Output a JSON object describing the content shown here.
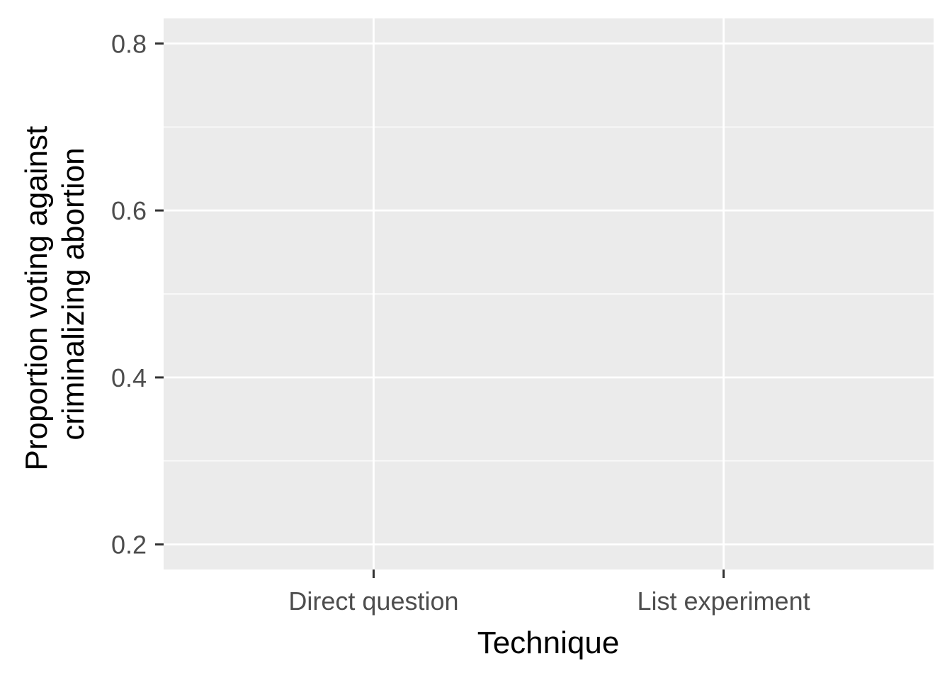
{
  "chart_data": {
    "type": "scatter",
    "title": "",
    "xlabel": "Technique",
    "ylabel_lines": [
      "Proportion voting against",
      "criminalizing abortion"
    ],
    "categories": [
      "Direct question",
      "List experiment"
    ],
    "ylim": [
      0.17,
      0.83
    ],
    "y_major_ticks": [
      0.2,
      0.4,
      0.6,
      0.8
    ],
    "y_tick_labels": [
      "0.2",
      "0.4",
      "0.6",
      "0.8"
    ],
    "y_minor_ticks": [
      0.3,
      0.5,
      0.7
    ],
    "series": [],
    "grid": true,
    "legend": "none",
    "panel_color": "#ebebeb",
    "grid_color": "#ffffff",
    "tick_color": "#333333",
    "tick_label_color": "#4d4d4d"
  }
}
